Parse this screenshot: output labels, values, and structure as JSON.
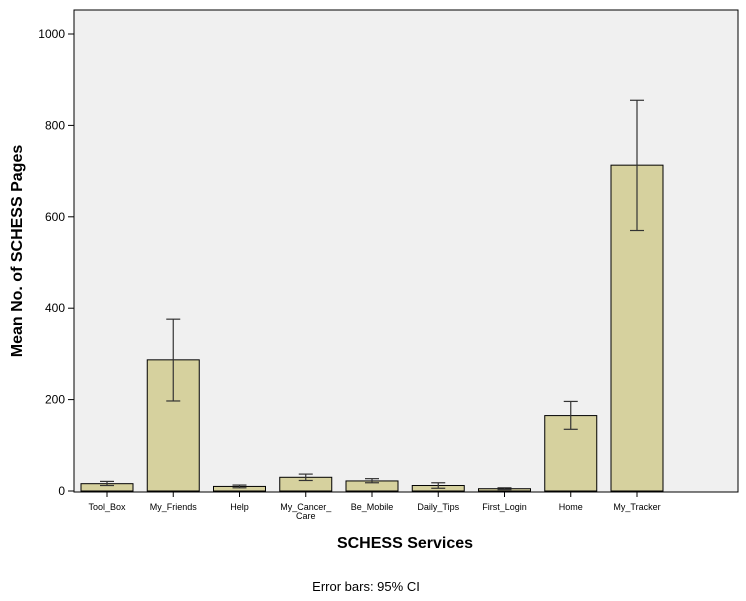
{
  "chart_data": {
    "type": "bar",
    "title": "",
    "xlabel": "SCHESS Services",
    "ylabel": "Mean No. of SCHESS Pages",
    "ylim": [
      0,
      1000
    ],
    "yticks": [
      0,
      200,
      400,
      600,
      800,
      1000
    ],
    "grid": false,
    "categories": [
      [
        "Tool_Box"
      ],
      [
        "My_Friends"
      ],
      [
        "Help"
      ],
      [
        "My_Cancer_",
        "Care"
      ],
      [
        "Be_Mobile"
      ],
      [
        "Daily_Tips"
      ],
      [
        "First_Login"
      ],
      [
        "Home"
      ],
      [
        "My_Tracker"
      ]
    ],
    "values": [
      16,
      287,
      10,
      30,
      22,
      12,
      5,
      165,
      713
    ],
    "error_low": [
      12,
      197,
      7,
      23,
      18,
      6,
      3,
      135,
      570
    ],
    "error_high": [
      21,
      376,
      13,
      37,
      27,
      18,
      7,
      196,
      855
    ],
    "bar_color": "#d6d19e",
    "plot_background": "#f0f0f0",
    "footnote": "Error bars: 95% CI"
  }
}
